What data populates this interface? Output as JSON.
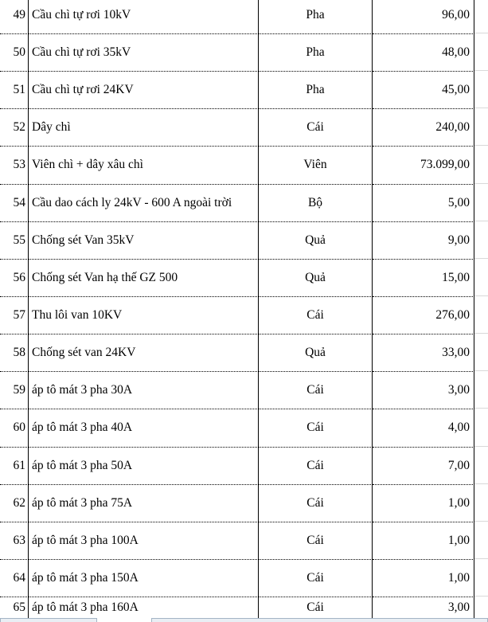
{
  "table": {
    "rows": [
      {
        "no": "49",
        "desc": "Cầu chì tự rơi 10kV",
        "unit": "Pha",
        "qty": "96,00"
      },
      {
        "no": "50",
        "desc": "Cầu chì tự rơi 35kV",
        "unit": "Pha",
        "qty": "48,00"
      },
      {
        "no": "51",
        "desc": "Cầu chì tự rơi 24KV",
        "unit": "Pha",
        "qty": "45,00"
      },
      {
        "no": "52",
        "desc": "Dây chì",
        "unit": "Cái",
        "qty": "240,00"
      },
      {
        "no": "53",
        "desc": "Viên chì + dây xâu chì",
        "unit": "Viên",
        "qty": "73.099,00"
      },
      {
        "no": "54",
        "desc": "Cầu dao cách ly 24kV - 600 A ngoài trời",
        "unit": "Bộ",
        "qty": "5,00"
      },
      {
        "no": "55",
        "desc": "Chống sét Van 35kV",
        "unit": "Quả",
        "qty": "9,00"
      },
      {
        "no": "56",
        "desc": "Chống sét Van hạ thế GZ 500",
        "unit": "Quả",
        "qty": "15,00"
      },
      {
        "no": "57",
        "desc": "Thu lôi van 10KV",
        "unit": "Cái",
        "qty": "276,00"
      },
      {
        "no": "58",
        "desc": "Chống sét van 24KV",
        "unit": "Quả",
        "qty": "33,00"
      },
      {
        "no": "59",
        "desc": "áp tô mát 3 pha 30A",
        "unit": "Cái",
        "qty": "3,00"
      },
      {
        "no": "60",
        "desc": "áp tô mát 3 pha 40A",
        "unit": "Cái",
        "qty": "4,00"
      },
      {
        "no": "61",
        "desc": "áp tô mát 3 pha 50A",
        "unit": "Cái",
        "qty": "7,00"
      },
      {
        "no": "62",
        "desc": "áp tô mát 3 pha 75A",
        "unit": "Cái",
        "qty": "1,00"
      },
      {
        "no": "63",
        "desc": "áp tô mát 3 pha 100A",
        "unit": "Cái",
        "qty": "1,00"
      },
      {
        "no": "64",
        "desc": "áp tô mát 3 pha 150A",
        "unit": "Cái",
        "qty": "1,00"
      },
      {
        "no": "65",
        "desc": "áp tô mát 3 pha 160A",
        "unit": "Cái",
        "qty": "3,00"
      }
    ]
  },
  "colors": {
    "grid_line": "#000000",
    "faint_gridline": "#d9d9d9",
    "fragment_border": "#a3b4c4",
    "fragment_fill": "#e9eef4",
    "text": "#000000",
    "background": "#ffffff"
  }
}
